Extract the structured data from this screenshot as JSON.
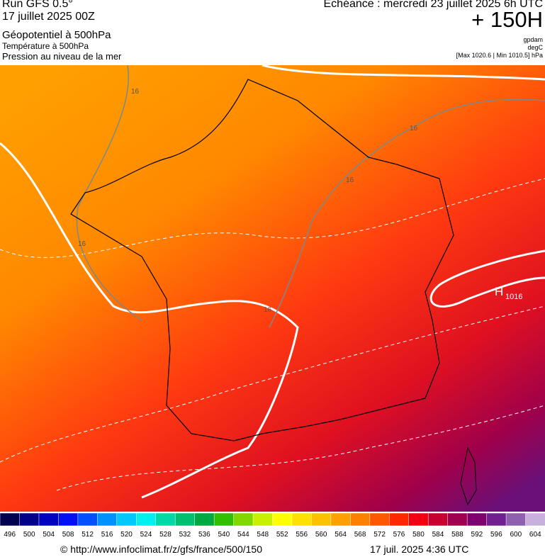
{
  "header": {
    "run": "Run GFS 0.5°",
    "date": "17 juillet 2025 00Z",
    "echeance": "Echéance : mercredi 23 juillet 2025 6h UTC",
    "lead": "+ 150H",
    "layers": [
      "Géopotentiel à 500hPa",
      "Température à 500hPa",
      "Pression au niveau de la mer"
    ],
    "units": [
      "gpdam",
      "degC",
      "[Max 1020.6 | Min 1010.5] hPa"
    ]
  },
  "map": {
    "contour_labels": [
      "16",
      "16",
      "16",
      "16",
      "16"
    ],
    "high": {
      "symbol": "H",
      "value": "1016"
    }
  },
  "colorbar": {
    "ticks": [
      496,
      500,
      504,
      508,
      512,
      516,
      520,
      524,
      528,
      532,
      536,
      540,
      544,
      548,
      552,
      556,
      560,
      564,
      568,
      572,
      576,
      580,
      584,
      588,
      592,
      596,
      600,
      604
    ],
    "colors": [
      "#000050",
      "#000088",
      "#0000c0",
      "#0010f0",
      "#0050ff",
      "#0090ff",
      "#00c8ff",
      "#00f0f0",
      "#00d8a8",
      "#00c070",
      "#00a840",
      "#30c000",
      "#80d800",
      "#c8f000",
      "#ffff00",
      "#ffe000",
      "#ffc000",
      "#ffa000",
      "#ff8000",
      "#ff5800",
      "#ff2800",
      "#f00010",
      "#c80030",
      "#a00050",
      "#800070",
      "#702090",
      "#9060b0",
      "#c8b0dc"
    ]
  },
  "footer": {
    "url": "© http://www.infoclimat.fr/z/gfs/france/500/150",
    "time": "17 juil. 2025  4:36 UTC"
  }
}
